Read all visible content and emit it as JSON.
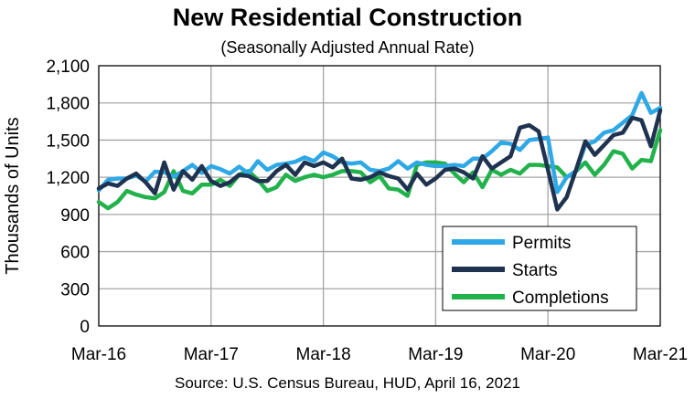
{
  "chart_data": {
    "type": "line",
    "title": "New Residential Construction",
    "subtitle": "(Seasonally Adjusted Annual Rate)",
    "ylabel": "Thousands of Units",
    "xlabel": "",
    "source": "Source:  U.S. Census Bureau, HUD, April 16, 2021",
    "ylim": [
      0,
      2100
    ],
    "yticks": [
      0,
      300,
      600,
      900,
      1200,
      1500,
      1800,
      2100
    ],
    "ytick_labels": [
      "0",
      "300",
      "600",
      "900",
      "1,200",
      "1,500",
      "1,800",
      "2,100"
    ],
    "xlim": [
      0,
      60
    ],
    "xticks": [
      0,
      12,
      24,
      36,
      48,
      60
    ],
    "xtick_labels": [
      "Mar-16",
      "Mar-17",
      "Mar-18",
      "Mar-19",
      "Mar-20",
      "Mar-21"
    ],
    "grid": true,
    "legend_position": "bottom-right",
    "x": [
      "Mar-16",
      "Apr-16",
      "May-16",
      "Jun-16",
      "Jul-16",
      "Aug-16",
      "Sep-16",
      "Oct-16",
      "Nov-16",
      "Dec-16",
      "Jan-17",
      "Feb-17",
      "Mar-17",
      "Apr-17",
      "May-17",
      "Jun-17",
      "Jul-17",
      "Aug-17",
      "Sep-17",
      "Oct-17",
      "Nov-17",
      "Dec-17",
      "Jan-18",
      "Feb-18",
      "Mar-18",
      "Apr-18",
      "May-18",
      "Jun-18",
      "Jul-18",
      "Aug-18",
      "Sep-18",
      "Oct-18",
      "Nov-18",
      "Dec-18",
      "Jan-19",
      "Feb-19",
      "Mar-19",
      "Apr-19",
      "May-19",
      "Jun-19",
      "Jul-19",
      "Aug-19",
      "Sep-19",
      "Oct-19",
      "Nov-19",
      "Dec-19",
      "Jan-20",
      "Feb-20",
      "Mar-20",
      "Apr-20",
      "May-20",
      "Jun-20",
      "Jul-20",
      "Aug-20",
      "Sep-20",
      "Oct-20",
      "Nov-20",
      "Dec-20",
      "Jan-21",
      "Feb-21",
      "Mar-21"
    ],
    "series": [
      {
        "name": "Permits",
        "color": "#2ea8e6",
        "values": [
          1095,
          1180,
          1190,
          1190,
          1215,
          1165,
          1245,
          1240,
          1205,
          1250,
          1300,
          1235,
          1290,
          1265,
          1230,
          1285,
          1230,
          1330,
          1260,
          1300,
          1310,
          1325,
          1360,
          1330,
          1400,
          1370,
          1320,
          1310,
          1320,
          1260,
          1250,
          1270,
          1330,
          1270,
          1320,
          1300,
          1290,
          1290,
          1300,
          1290,
          1350,
          1350,
          1410,
          1480,
          1470,
          1420,
          1500,
          1510,
          1520,
          1080,
          1200,
          1250,
          1460,
          1490,
          1560,
          1580,
          1640,
          1700,
          1880,
          1720,
          1760
        ]
      },
      {
        "name": "Starts",
        "color": "#1f3350",
        "values": [
          1110,
          1150,
          1130,
          1190,
          1230,
          1160,
          1070,
          1320,
          1100,
          1250,
          1180,
          1290,
          1170,
          1130,
          1160,
          1220,
          1210,
          1170,
          1170,
          1250,
          1300,
          1220,
          1320,
          1290,
          1320,
          1280,
          1350,
          1190,
          1180,
          1200,
          1240,
          1210,
          1190,
          1100,
          1230,
          1140,
          1190,
          1260,
          1270,
          1240,
          1190,
          1370,
          1270,
          1320,
          1370,
          1600,
          1620,
          1570,
          1260,
          940,
          1040,
          1260,
          1490,
          1380,
          1460,
          1540,
          1560,
          1680,
          1660,
          1450,
          1740
        ]
      },
      {
        "name": "Completions",
        "color": "#22b24c",
        "values": [
          1000,
          950,
          1000,
          1090,
          1060,
          1040,
          1030,
          1080,
          1250,
          1090,
          1070,
          1140,
          1140,
          1180,
          1130,
          1220,
          1250,
          1180,
          1090,
          1120,
          1220,
          1170,
          1200,
          1220,
          1200,
          1220,
          1250,
          1250,
          1240,
          1160,
          1210,
          1110,
          1100,
          1050,
          1300,
          1320,
          1320,
          1310,
          1230,
          1160,
          1240,
          1120,
          1260,
          1220,
          1260,
          1230,
          1300,
          1300,
          1290,
          1280,
          1200,
          1250,
          1320,
          1220,
          1300,
          1410,
          1390,
          1270,
          1340,
          1330,
          1580
        ]
      }
    ]
  }
}
